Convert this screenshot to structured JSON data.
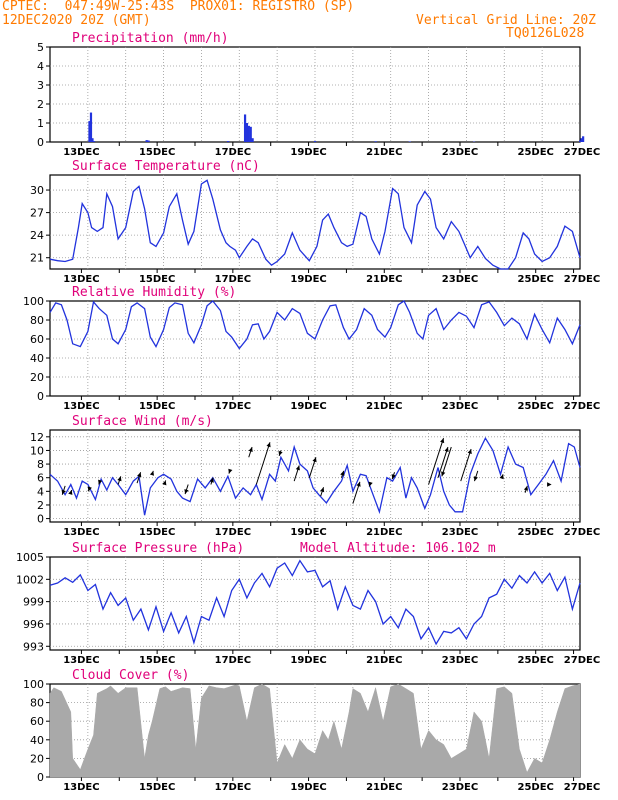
{
  "header": {
    "left_line1": "CPTEC:  047:49W-25:43S  PROX01: REGISTRO (SP)",
    "left_line2": "12DEC2020 20Z (GMT)",
    "right_line2": "Vertical Grid Line: 20Z",
    "right_line3": "TQ0126L028"
  },
  "colors": {
    "header": "#ff7a00",
    "title": "#e0007a",
    "line": "#2233dd",
    "bar": "#2233dd",
    "cloud": "#a9a9a9",
    "grid": "#999999"
  },
  "chart_data": [
    {
      "id": "precip",
      "type": "bar",
      "title": "Precipitation (mm/h)",
      "x_unit": "days from 12DEC2020 20Z",
      "ylim": [
        0,
        5
      ],
      "yticks": [
        0,
        1,
        2,
        3,
        4,
        5
      ],
      "x_tick_labels": [
        "13DEC",
        "15DEC",
        "17DEC",
        "19DEC",
        "21DEC",
        "23DEC",
        "25DEC",
        "27DEC"
      ],
      "values": [
        [
          1.04,
          1.1
        ],
        [
          1.08,
          1.55
        ],
        [
          1.12,
          0.2
        ],
        [
          1.16,
          0.05
        ],
        [
          2.55,
          0.1
        ],
        [
          2.6,
          0.08
        ],
        [
          4.7,
          0.05
        ],
        [
          5.15,
          1.45
        ],
        [
          5.2,
          1.0
        ],
        [
          5.25,
          0.85
        ],
        [
          5.3,
          0.8
        ],
        [
          5.35,
          0.2
        ],
        [
          7.0,
          0.05
        ],
        [
          8.6,
          0.04
        ],
        [
          9.5,
          0.03
        ],
        [
          11.2,
          0.02
        ],
        [
          14.0,
          0.08
        ],
        [
          14.04,
          0.2
        ],
        [
          14.08,
          0.3
        ]
      ],
      "grid": true
    },
    {
      "id": "temp",
      "type": "line",
      "title": "Surface Temperature (nC)",
      "ylim": [
        19.5,
        32
      ],
      "yticks": [
        21,
        24,
        27,
        30
      ],
      "x_tick_labels": [
        "13DEC",
        "15DEC",
        "17DEC",
        "19DEC",
        "21DEC",
        "23DEC",
        "25DEC",
        "27DEC"
      ],
      "x": [
        0,
        0.2,
        0.4,
        0.6,
        0.75,
        0.85,
        1.0,
        1.1,
        1.25,
        1.4,
        1.5,
        1.65,
        1.8,
        2.0,
        2.2,
        2.35,
        2.5,
        2.65,
        2.8,
        3.0,
        3.15,
        3.35,
        3.5,
        3.65,
        3.8,
        4.0,
        4.15,
        4.3,
        4.5,
        4.65,
        4.75,
        4.9,
        5.0,
        5.2,
        5.35,
        5.5,
        5.7,
        5.85,
        6.0,
        6.2,
        6.4,
        6.6,
        6.85,
        7.05,
        7.2,
        7.35,
        7.5,
        7.7,
        7.85,
        8.0,
        8.2,
        8.35,
        8.5,
        8.7,
        8.85,
        9.05,
        9.2,
        9.35,
        9.55,
        9.7,
        9.9,
        10.05,
        10.2,
        10.4,
        10.6,
        10.8,
        10.95,
        11.1,
        11.3,
        11.5,
        11.7,
        11.9,
        12.1,
        12.3,
        12.5,
        12.65,
        12.8,
        13.0,
        13.2,
        13.4,
        13.6,
        13.8,
        14.0
      ],
      "y": [
        20.8,
        20.6,
        20.5,
        20.8,
        25.0,
        28.2,
        27.0,
        25.0,
        24.5,
        25.0,
        29.5,
        27.8,
        23.5,
        25.0,
        29.8,
        30.5,
        27.5,
        23.0,
        22.5,
        24.3,
        27.8,
        29.5,
        26.0,
        22.8,
        24.5,
        30.8,
        31.3,
        28.8,
        24.7,
        23.0,
        22.5,
        22.0,
        21.0,
        22.5,
        23.5,
        23.0,
        20.8,
        20.0,
        20.5,
        21.5,
        24.3,
        22.0,
        20.6,
        22.5,
        26.0,
        26.8,
        25.0,
        23.0,
        22.5,
        22.8,
        27.0,
        26.5,
        23.5,
        21.5,
        24.5,
        30.2,
        29.5,
        25.0,
        23.0,
        28.0,
        29.8,
        28.8,
        25.0,
        23.5,
        25.8,
        24.5,
        22.8,
        21.0,
        22.5,
        20.9,
        20.0,
        19.5,
        19.5,
        21.0,
        24.3,
        23.5,
        21.5,
        20.5,
        21.0,
        22.5,
        25.2,
        24.5,
        21.0
      ],
      "grid": true
    },
    {
      "id": "rh",
      "type": "line",
      "title": "Relative Humidity (%)",
      "ylim": [
        0,
        100
      ],
      "yticks": [
        0,
        20,
        40,
        60,
        80,
        100
      ],
      "x_tick_labels": [
        "13DEC",
        "15DEC",
        "17DEC",
        "19DEC",
        "21DEC",
        "23DEC",
        "25DEC",
        "27DEC"
      ],
      "x": [
        0,
        0.15,
        0.3,
        0.45,
        0.6,
        0.8,
        1.0,
        1.15,
        1.3,
        1.5,
        1.65,
        1.8,
        2.0,
        2.15,
        2.3,
        2.5,
        2.65,
        2.8,
        3.0,
        3.15,
        3.3,
        3.5,
        3.65,
        3.8,
        4.0,
        4.15,
        4.3,
        4.5,
        4.65,
        4.8,
        5.0,
        5.2,
        5.35,
        5.5,
        5.65,
        5.8,
        6.0,
        6.2,
        6.4,
        6.6,
        6.8,
        7.0,
        7.2,
        7.4,
        7.55,
        7.75,
        7.9,
        8.1,
        8.3,
        8.5,
        8.65,
        8.85,
        9.0,
        9.2,
        9.35,
        9.5,
        9.7,
        9.85,
        10.0,
        10.2,
        10.4,
        10.6,
        10.8,
        11.0,
        11.2,
        11.4,
        11.6,
        11.8,
        12.0,
        12.2,
        12.4,
        12.6,
        12.8,
        13.0,
        13.2,
        13.4,
        13.6,
        13.8,
        14.0
      ],
      "y": [
        88,
        98,
        96,
        80,
        55,
        52,
        68,
        99,
        92,
        85,
        60,
        55,
        70,
        94,
        98,
        92,
        62,
        52,
        70,
        93,
        98,
        96,
        66,
        56,
        75,
        95,
        100,
        90,
        68,
        62,
        50,
        60,
        75,
        76,
        60,
        68,
        88,
        80,
        92,
        87,
        66,
        60,
        80,
        95,
        96,
        72,
        60,
        70,
        92,
        85,
        70,
        62,
        72,
        96,
        100,
        88,
        66,
        60,
        85,
        92,
        70,
        80,
        88,
        84,
        72,
        96,
        99,
        88,
        74,
        82,
        76,
        60,
        86,
        70,
        56,
        82,
        70,
        55,
        75
      ],
      "grid": true
    },
    {
      "id": "wind",
      "type": "line",
      "title": "Surface Wind (m/s)",
      "ylim": [
        -0.5,
        13
      ],
      "yticks": [
        0,
        2,
        4,
        6,
        8,
        10,
        12
      ],
      "x_tick_labels": [
        "13DEC",
        "15DEC",
        "17DEC",
        "19DEC",
        "21DEC",
        "23DEC",
        "25DEC",
        "27DEC"
      ],
      "x": [
        0,
        0.2,
        0.4,
        0.55,
        0.7,
        0.85,
        1.0,
        1.2,
        1.35,
        1.5,
        1.65,
        1.8,
        2.0,
        2.2,
        2.35,
        2.5,
        2.65,
        2.85,
        3.0,
        3.2,
        3.35,
        3.5,
        3.7,
        3.9,
        4.1,
        4.3,
        4.5,
        4.7,
        4.9,
        5.1,
        5.3,
        5.45,
        5.6,
        5.8,
        5.95,
        6.1,
        6.3,
        6.45,
        6.6,
        6.8,
        6.95,
        7.1,
        7.3,
        7.5,
        7.7,
        7.85,
        8.0,
        8.2,
        8.35,
        8.5,
        8.7,
        8.9,
        9.05,
        9.25,
        9.4,
        9.55,
        9.7,
        9.9,
        10.05,
        10.25,
        10.4,
        10.55,
        10.7,
        10.9,
        11.1,
        11.3,
        11.5,
        11.7,
        11.9,
        12.1,
        12.3,
        12.5,
        12.7,
        12.9,
        13.1,
        13.3,
        13.5,
        13.7,
        13.85,
        14.0
      ],
      "y": [
        6.5,
        5.5,
        3.5,
        5.0,
        3.0,
        5.5,
        5.0,
        2.8,
        5.8,
        4.2,
        6.0,
        5.0,
        3.5,
        5.5,
        6.2,
        0.5,
        4.5,
        6.0,
        6.5,
        5.8,
        4.0,
        3.0,
        2.5,
        5.8,
        4.5,
        6.0,
        4.0,
        6.2,
        3.0,
        4.5,
        3.5,
        5.0,
        2.8,
        6.5,
        5.5,
        9.0,
        7.0,
        10.5,
        8.0,
        7.0,
        4.5,
        3.5,
        2.3,
        4.0,
        5.5,
        7.8,
        4.0,
        6.5,
        6.3,
        4.0,
        1.0,
        6.0,
        5.5,
        7.5,
        3.0,
        6.0,
        4.5,
        1.5,
        3.5,
        7.5,
        4.0,
        2.0,
        1.0,
        1.0,
        6.5,
        9.5,
        11.8,
        10.0,
        6.5,
        10.5,
        8.0,
        7.5,
        3.5,
        5.0,
        6.5,
        8.5,
        5.5,
        11.0,
        10.5,
        7.5
      ],
      "grid": true
    },
    {
      "id": "pres",
      "type": "line",
      "title": "Surface Pressure (hPa)",
      "annotation": "Model Altitude: 106.102 m",
      "ylim": [
        992.5,
        1005
      ],
      "yticks": [
        993,
        996,
        999,
        1002,
        1005
      ],
      "x_tick_labels": [
        "13DEC",
        "15DEC",
        "17DEC",
        "19DEC",
        "21DEC",
        "23DEC",
        "25DEC",
        "27DEC"
      ],
      "x": [
        0,
        0.2,
        0.4,
        0.6,
        0.8,
        1.0,
        1.2,
        1.4,
        1.6,
        1.8,
        2.0,
        2.2,
        2.4,
        2.6,
        2.8,
        3.0,
        3.2,
        3.4,
        3.6,
        3.8,
        4.0,
        4.2,
        4.4,
        4.6,
        4.8,
        5.0,
        5.2,
        5.4,
        5.6,
        5.8,
        6.0,
        6.2,
        6.4,
        6.6,
        6.8,
        7.0,
        7.2,
        7.4,
        7.6,
        7.8,
        8.0,
        8.2,
        8.4,
        8.6,
        8.8,
        9.0,
        9.2,
        9.4,
        9.6,
        9.8,
        10.0,
        10.2,
        10.4,
        10.6,
        10.8,
        11.0,
        11.2,
        11.4,
        11.6,
        11.8,
        12.0,
        12.2,
        12.4,
        12.6,
        12.8,
        13.0,
        13.2,
        13.4,
        13.6,
        13.8,
        14.0
      ],
      "y": [
        1001.2,
        1001.5,
        1002.2,
        1001.6,
        1002.6,
        1000.5,
        1001.3,
        998.0,
        1000.2,
        998.5,
        999.5,
        996.5,
        998.0,
        995.2,
        998.3,
        995.0,
        997.5,
        994.8,
        997.0,
        993.5,
        997.0,
        996.5,
        999.5,
        997.0,
        1000.5,
        1002.0,
        999.5,
        1001.5,
        1002.8,
        1001.0,
        1003.5,
        1004.2,
        1002.5,
        1004.5,
        1003.0,
        1003.2,
        1001.0,
        1001.8,
        998.0,
        1001.0,
        998.5,
        998.0,
        1000.5,
        999.0,
        996.0,
        997.0,
        995.5,
        998.0,
        997.0,
        994.0,
        995.5,
        993.3,
        995.0,
        994.8,
        995.5,
        994.0,
        996.0,
        997.0,
        999.5,
        1000.0,
        1002.0,
        1000.8,
        1002.5,
        1001.5,
        1003.0,
        1001.5,
        1002.8,
        1000.5,
        1002.3,
        998.0,
        1001.5
      ],
      "grid": true
    },
    {
      "id": "cloud",
      "type": "area",
      "title": "Cloud Cover (%)",
      "ylim": [
        0,
        100
      ],
      "yticks": [
        0,
        20,
        40,
        60,
        80,
        100
      ],
      "x_tick_labels": [
        "13DEC",
        "15DEC",
        "17DEC",
        "19DEC",
        "21DEC",
        "23DEC",
        "25DEC",
        "27DEC"
      ],
      "x": [
        0,
        0.1,
        0.3,
        0.55,
        0.6,
        0.8,
        1.0,
        1.15,
        1.25,
        1.5,
        1.6,
        1.8,
        2.0,
        2.3,
        2.5,
        2.6,
        2.7,
        2.9,
        3.05,
        3.2,
        3.5,
        3.7,
        3.85,
        4.0,
        4.2,
        4.4,
        4.6,
        4.75,
        4.9,
        5.0,
        5.2,
        5.4,
        5.6,
        5.8,
        6.0,
        6.2,
        6.4,
        6.6,
        6.8,
        7.0,
        7.2,
        7.35,
        7.5,
        7.6,
        7.7,
        7.9,
        8.0,
        8.2,
        8.4,
        8.6,
        8.8,
        9.0,
        9.2,
        9.4,
        9.6,
        9.8,
        10.0,
        10.2,
        10.4,
        10.6,
        10.8,
        11.0,
        11.2,
        11.4,
        11.6,
        11.8,
        12.0,
        12.2,
        12.4,
        12.6,
        12.8,
        13.0,
        13.2,
        13.4,
        13.6,
        13.8,
        14.0
      ],
      "y": [
        90,
        96,
        92,
        70,
        20,
        8,
        30,
        45,
        90,
        95,
        98,
        90,
        96,
        96,
        20,
        45,
        60,
        95,
        97,
        92,
        96,
        95,
        30,
        85,
        98,
        96,
        95,
        97,
        99,
        98,
        60,
        96,
        100,
        95,
        15,
        35,
        20,
        40,
        30,
        25,
        50,
        40,
        60,
        45,
        30,
        70,
        95,
        90,
        70,
        96,
        60,
        97,
        100,
        95,
        90,
        30,
        50,
        40,
        35,
        20,
        25,
        30,
        70,
        60,
        20,
        95,
        97,
        90,
        30,
        5,
        20,
        15,
        40,
        70,
        95,
        98,
        100
      ],
      "grid": true
    }
  ]
}
